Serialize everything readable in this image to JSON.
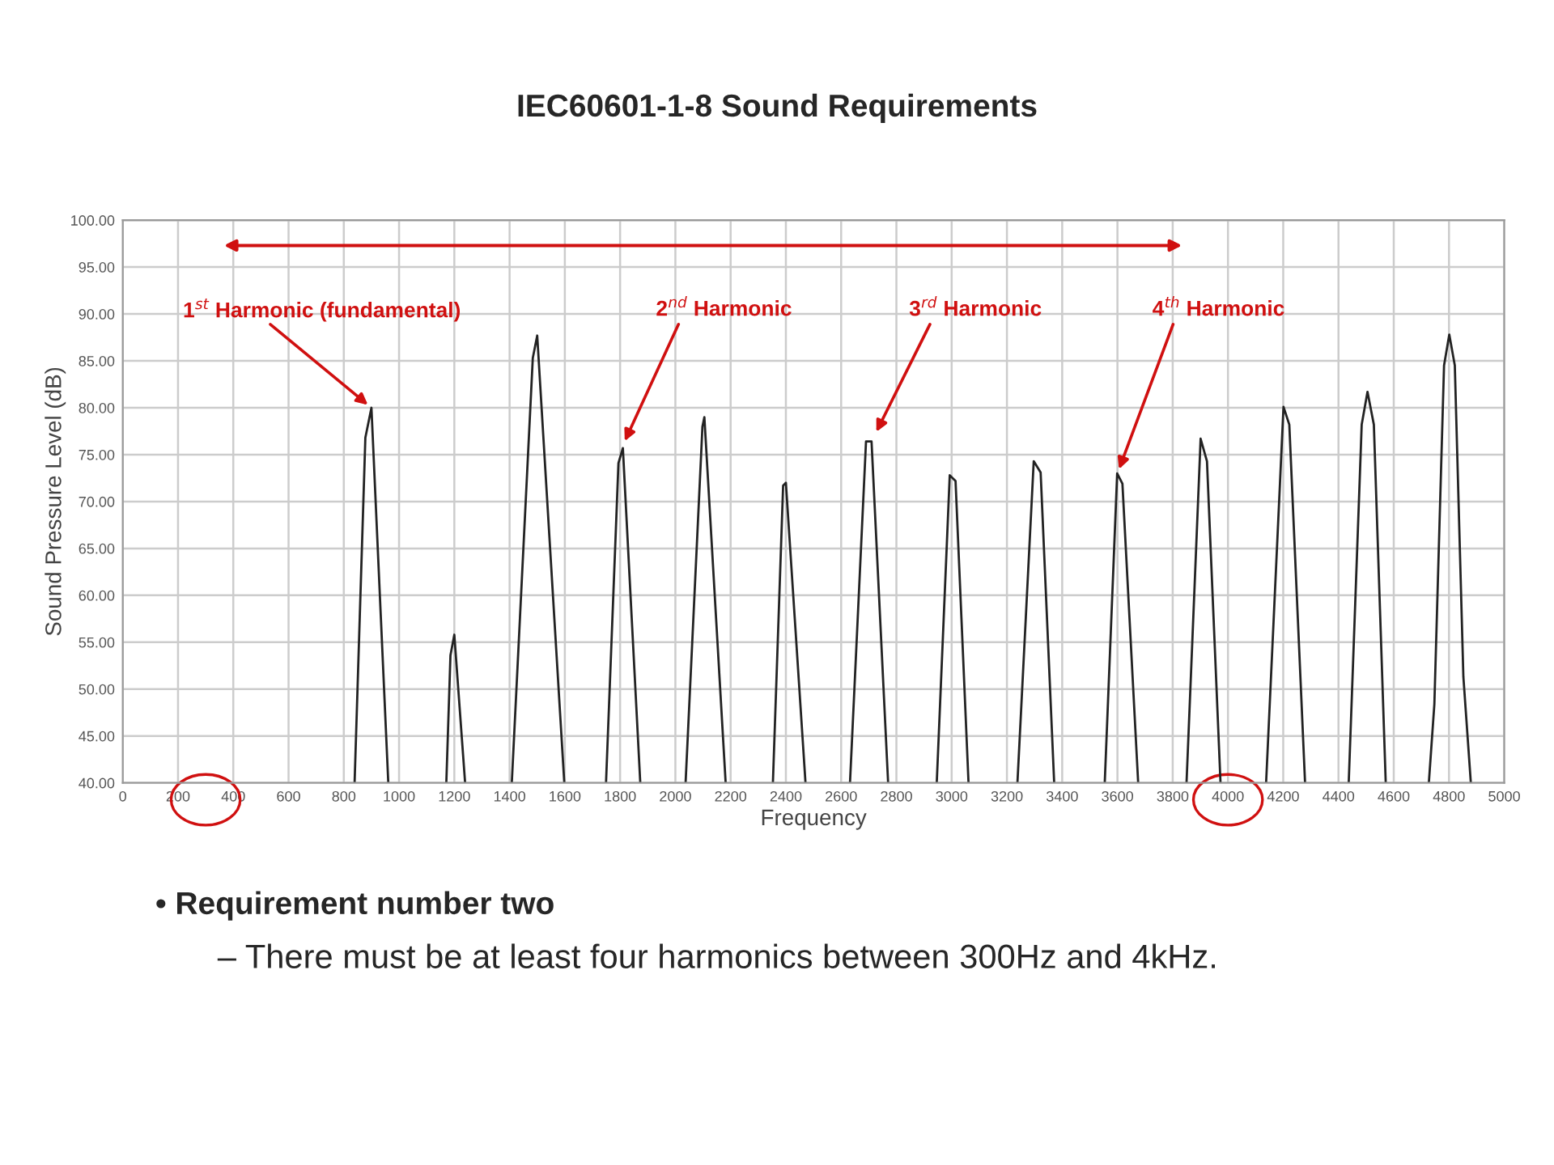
{
  "chart_data": {
    "type": "line",
    "title": "IEC60601-1-8 Sound Requirements",
    "xlabel": "Frequency",
    "ylabel": "Sound Pressure Level (dB)",
    "xlim": [
      0,
      5000
    ],
    "ylim": [
      40,
      100
    ],
    "xticks": [
      0,
      200,
      400,
      600,
      800,
      1000,
      1200,
      1400,
      1600,
      1800,
      2000,
      2200,
      2400,
      2600,
      2800,
      3000,
      3200,
      3400,
      3600,
      3800,
      4000,
      4200,
      4400,
      4600,
      4800,
      5000
    ],
    "yticks": [
      {
        "value": 40,
        "label": "40.00"
      },
      {
        "value": 45,
        "label": "45.00"
      },
      {
        "value": 50,
        "label": "50.00"
      },
      {
        "value": 55,
        "label": "55.00"
      },
      {
        "value": 60,
        "label": "60.00"
      },
      {
        "value": 65,
        "label": "65.00"
      },
      {
        "value": 70,
        "label": "70.00"
      },
      {
        "value": 75,
        "label": "75.00"
      },
      {
        "value": 80,
        "label": "80.00"
      },
      {
        "value": 85,
        "label": "85.00"
      },
      {
        "value": 90,
        "label": "90.00"
      },
      {
        "value": 95,
        "label": "95.00"
      },
      {
        "value": 100,
        "label": "100.00"
      }
    ],
    "grid": true,
    "marker": "none",
    "line_style": "solid",
    "series": [
      {
        "color": "#222222",
        "x": [
          839,
          878,
          900,
          961,
          980,
          1171,
          1186,
          1200,
          1239,
          1300,
          1408,
          1484,
          1500,
          1598,
          1650,
          1749,
          1794,
          1810,
          1873,
          1950,
          2037,
          2098,
          2105,
          2182,
          2250,
          2353,
          2390,
          2400,
          2471,
          2550,
          2632,
          2690,
          2710,
          2770,
          2850,
          2946,
          2993,
          3014,
          3061,
          3150,
          3238,
          3297,
          3322,
          3371,
          3450,
          3554,
          3599,
          3618,
          3675,
          3750,
          3850,
          3901,
          3924,
          3973,
          4050,
          4138,
          4201,
          4222,
          4279,
          4350,
          4437,
          4484,
          4505,
          4528,
          4571,
          4650,
          4727,
          4747,
          4782,
          4801,
          4821,
          4852,
          4879
        ],
        "values": [
          40,
          76.8,
          80,
          40,
          null,
          40,
          53.6,
          55.8,
          40,
          null,
          40,
          85.3,
          87.7,
          40,
          null,
          40,
          74.1,
          75.7,
          40,
          null,
          40,
          78,
          79,
          40,
          null,
          40,
          71.7,
          72,
          40,
          null,
          40,
          76.4,
          76.4,
          40,
          null,
          40,
          72.8,
          72.2,
          40,
          null,
          40,
          74.3,
          73.1,
          40,
          null,
          40,
          73,
          71.9,
          40,
          null,
          40,
          76.7,
          74.3,
          40,
          null,
          40,
          80.1,
          78.2,
          40,
          null,
          40,
          78.2,
          81.7,
          78.2,
          40,
          null,
          40,
          48.4,
          84.5,
          87.8,
          84.5,
          51.3,
          40
        ]
      }
    ],
    "annotations": [
      {
        "text": "1$^{st}$ Harmonic (fundamental)",
        "x": 900,
        "y": 80
      },
      {
        "text": "2$^{nd}$ Harmonic",
        "x": 1810,
        "y": 76
      },
      {
        "text": "3$^{rd}$ Harmonic",
        "x": 2720,
        "y": 77
      },
      {
        "text": "4$^{th}$ Harmonic",
        "x": 3600,
        "y": 73
      },
      "• Requirement number two",
      "– There must be at least four harmonics between 300Hz and 4kHz."
    ]
  }
}
